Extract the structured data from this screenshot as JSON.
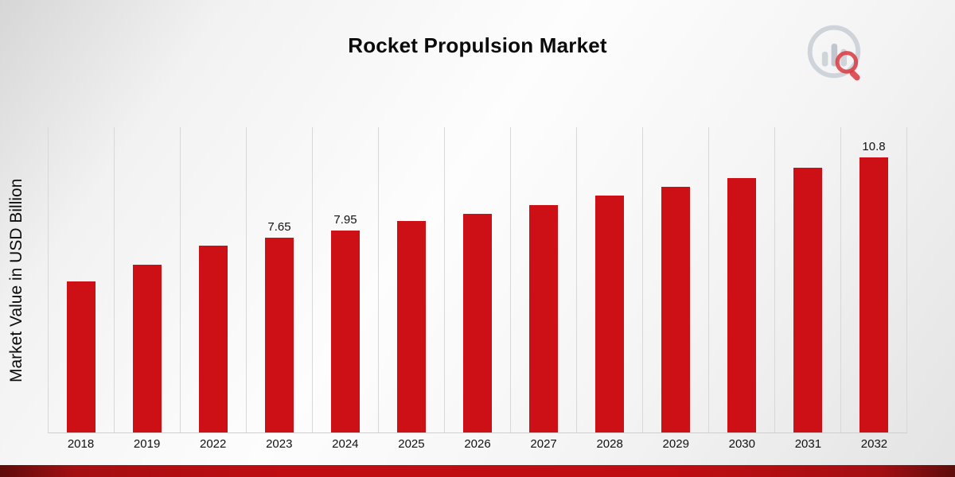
{
  "page": {
    "title": "Rocket Propulsion Market",
    "ylabel": "Market Value in USD Billion"
  },
  "colors": {
    "bar": "#cc1016",
    "banner": "#c00d12",
    "gridline": "#d8d8d8",
    "logo_gray": "#c9ced6",
    "logo_red": "#d51920"
  },
  "chart_data": {
    "type": "bar",
    "title": "Rocket Propulsion Market",
    "xlabel": "",
    "ylabel": "Market Value in USD Billion",
    "categories": [
      "2018",
      "2019",
      "2022",
      "2023",
      "2024",
      "2025",
      "2026",
      "2027",
      "2028",
      "2029",
      "2030",
      "2031",
      "2032"
    ],
    "values": [
      5.95,
      6.6,
      7.35,
      7.65,
      7.95,
      8.3,
      8.6,
      8.95,
      9.3,
      9.65,
      10.0,
      10.4,
      10.8
    ],
    "point_labels": [
      "",
      "",
      "",
      "7.65",
      "7.95",
      "",
      "",
      "",
      "",
      "",
      "",
      "",
      "10.8"
    ],
    "ylim": [
      0,
      12
    ],
    "grid": "vertical-only",
    "legend": "none",
    "bar_color": "#cc1016"
  }
}
